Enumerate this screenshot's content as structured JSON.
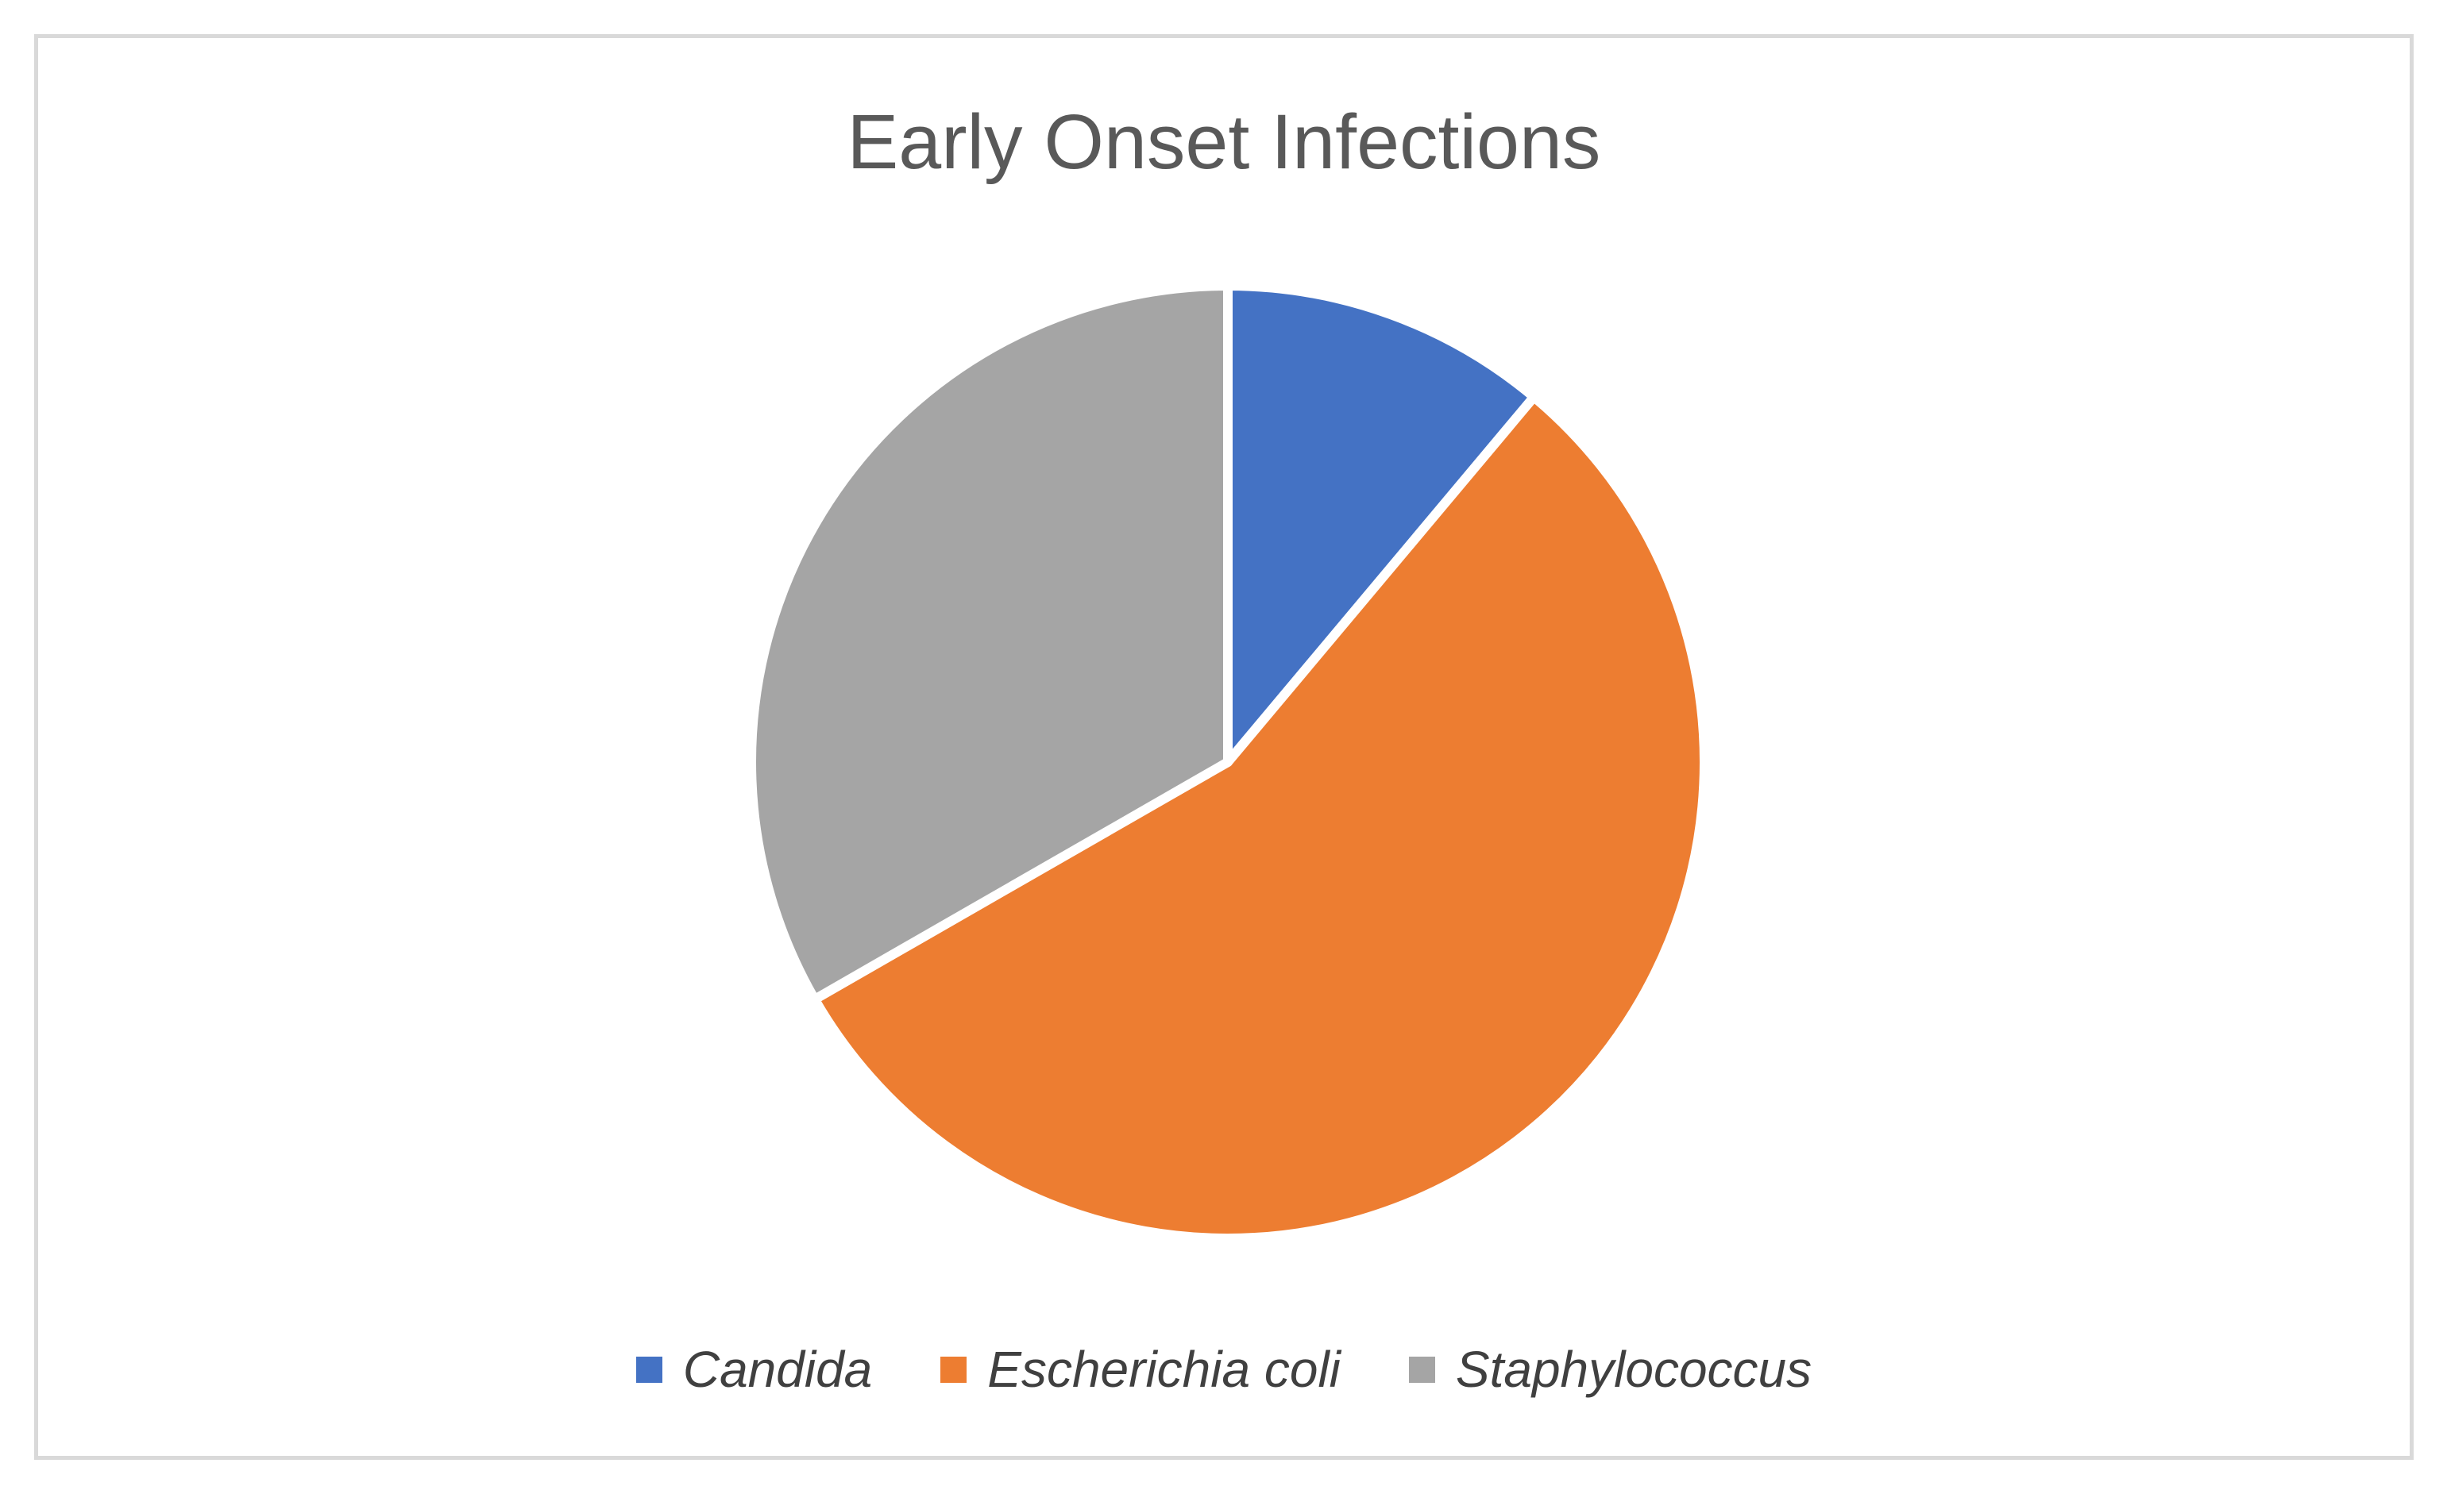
{
  "window": {
    "background": "#FFFFFF",
    "frame_border_color": "#D9D9D9"
  },
  "chart": {
    "title": "Early Onset Infections",
    "title_color": "#595959",
    "legend_text_color": "#404040"
  },
  "chart_data": {
    "type": "pie",
    "title": "Early Onset Infections",
    "categories": [
      "Candida",
      "Escherichia coli",
      "Staphylococcus"
    ],
    "values": [
      11.1,
      55.6,
      33.3
    ],
    "unit": "percent",
    "colors": [
      "#4472C4",
      "#ED7D31",
      "#A5A5A5"
    ],
    "start_angle_deg": 0,
    "direction": "clockwise",
    "slice_border_color": "#FFFFFF",
    "slice_border_width": 12,
    "legend_position": "bottom",
    "legend_style": "italic",
    "grid": false
  }
}
